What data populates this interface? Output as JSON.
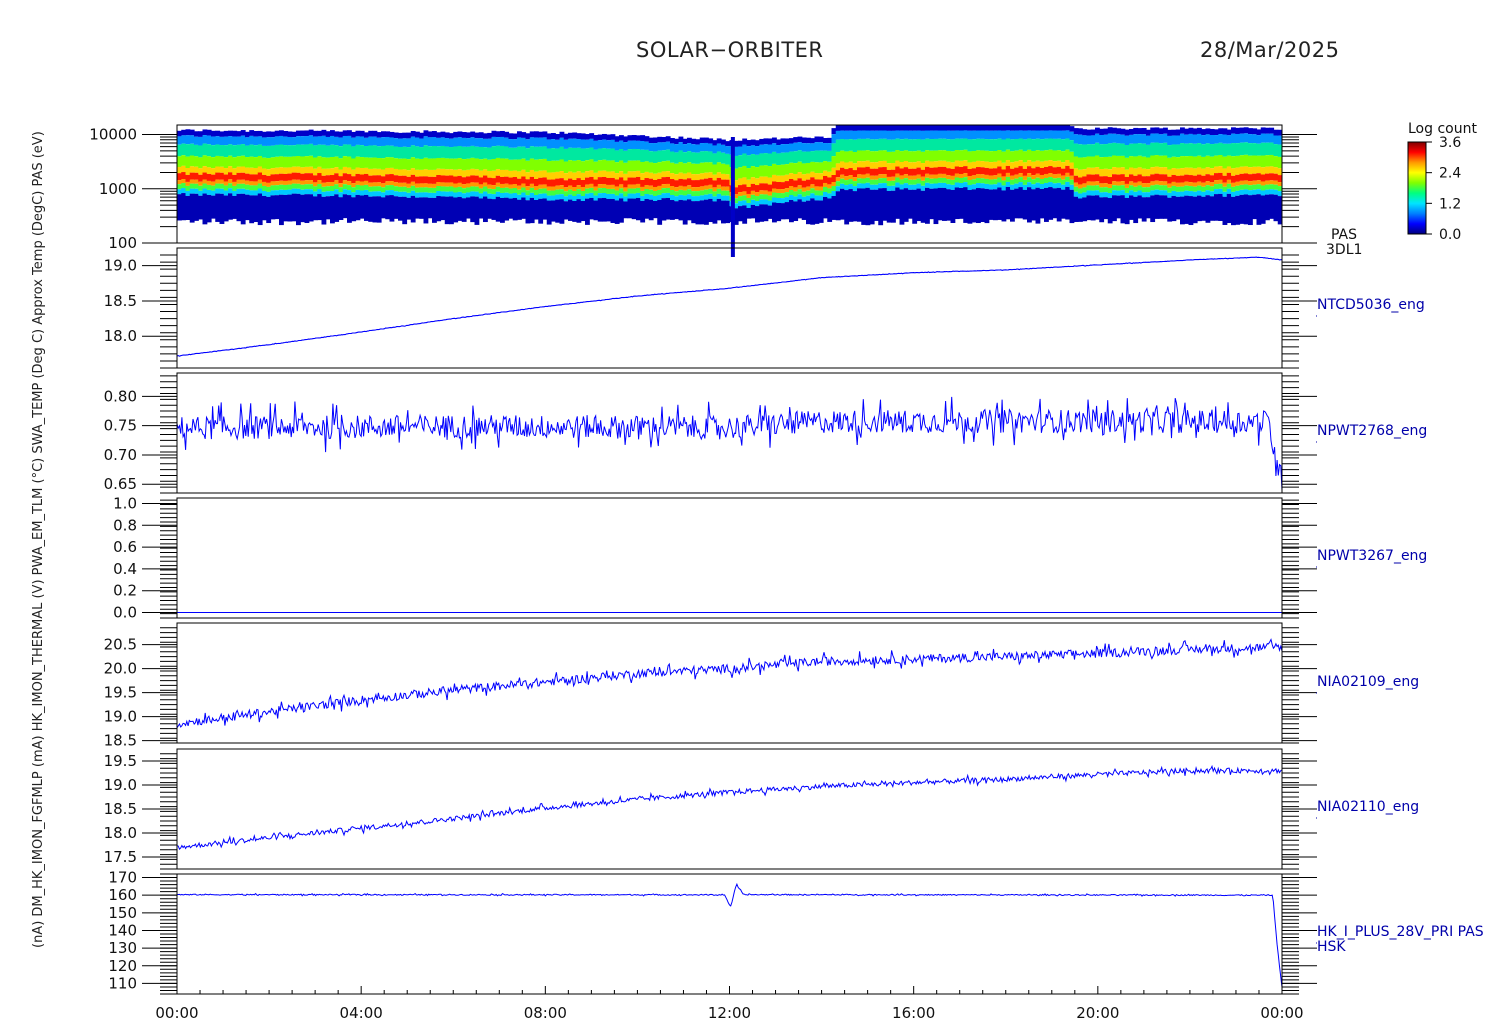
{
  "header": {
    "mission": "SOLAR−ORBITER",
    "date": "28/Mar/2025"
  },
  "colors": {
    "trace": "#0000ff",
    "axis": "#000000",
    "label_right": "#0000aa"
  },
  "time_axis": {
    "ticks": [
      "00:00",
      "04:00",
      "08:00",
      "12:00",
      "16:00",
      "20:00",
      "00:00"
    ],
    "range_hours": [
      0,
      24
    ]
  },
  "y_axis_title_overlap": "(nA) DM_HK_IMON_FGFMLP (mA) HK_IMON_THERMAL (V) PWA_EM_TLM (°C) SWA_TEMP (Deg C) Approx Temp (DegC) PAS (eV)",
  "colorbar": {
    "title": "Log count",
    "ticks": [
      "3.6",
      "2.4",
      "1.2",
      "0.0"
    ],
    "range": [
      0.0,
      3.6
    ],
    "colors": [
      "#00007f",
      "#0000ff",
      "#0080ff",
      "#00e5ff",
      "#00ff80",
      "#80ff00",
      "#ffff00",
      "#ff9900",
      "#ff0000",
      "#7f0000"
    ]
  },
  "chart_data": [
    {
      "type": "heatmap",
      "panel_id": "PAS 3DL1",
      "right_labels": [
        "PAS",
        "3DL1"
      ],
      "yscale": "log",
      "ylim": [
        100,
        15000
      ],
      "ytick_labels": [
        "10000",
        "1000",
        "100"
      ],
      "ytick_values": [
        10000,
        1000,
        100
      ],
      "x_hours": [
        0,
        24
      ],
      "peak_energy_profile": [
        {
          "x": 0,
          "y": 1600
        },
        {
          "x": 4,
          "y": 1550
        },
        {
          "x": 8,
          "y": 1300
        },
        {
          "x": 11.9,
          "y": 1300
        },
        {
          "x": 12.1,
          "y": 900
        },
        {
          "x": 14.2,
          "y": 1400
        },
        {
          "x": 14.4,
          "y": 2000
        },
        {
          "x": 19.4,
          "y": 2100
        },
        {
          "x": 19.5,
          "y": 1450
        },
        {
          "x": 24,
          "y": 1600
        }
      ],
      "upper_cutoff_profile": [
        {
          "x": 0,
          "y": 12000
        },
        {
          "x": 8,
          "y": 11000
        },
        {
          "x": 12,
          "y": 8000
        },
        {
          "x": 14.2,
          "y": 9000
        },
        {
          "x": 14.3,
          "y": 16000
        },
        {
          "x": 19.4,
          "y": 16000
        },
        {
          "x": 19.5,
          "y": 13000
        },
        {
          "x": 24,
          "y": 13000
        }
      ],
      "lower_cutoff": 250
    },
    {
      "type": "line",
      "panel_id": "NTCD5036_eng",
      "right_label": "NTCD5036_eng",
      "ylim": [
        17.55,
        19.25
      ],
      "ytick_labels": [
        "19.0",
        "18.5",
        "18.0"
      ],
      "ytick_values": [
        19.0,
        18.5,
        18.0
      ],
      "points": [
        {
          "x": 0,
          "y": 17.72
        },
        {
          "x": 2,
          "y": 17.88
        },
        {
          "x": 4,
          "y": 18.06
        },
        {
          "x": 6,
          "y": 18.25
        },
        {
          "x": 8,
          "y": 18.42
        },
        {
          "x": 10,
          "y": 18.57
        },
        {
          "x": 12,
          "y": 18.68
        },
        {
          "x": 14,
          "y": 18.83
        },
        {
          "x": 16,
          "y": 18.9
        },
        {
          "x": 18,
          "y": 18.94
        },
        {
          "x": 20,
          "y": 19.01
        },
        {
          "x": 22,
          "y": 19.08
        },
        {
          "x": 23.5,
          "y": 19.12
        },
        {
          "x": 24,
          "y": 19.08
        }
      ],
      "noise": 0.003
    },
    {
      "type": "line",
      "panel_id": "NPWT2768_eng",
      "right_label": "NPWT2768_eng",
      "ylim": [
        0.635,
        0.84
      ],
      "ytick_labels": [
        "0.80",
        "0.75",
        "0.70",
        "0.65"
      ],
      "ytick_values": [
        0.8,
        0.75,
        0.7,
        0.65
      ],
      "points": [
        {
          "x": 0,
          "y": 0.746
        },
        {
          "x": 6,
          "y": 0.749
        },
        {
          "x": 12,
          "y": 0.747
        },
        {
          "x": 14,
          "y": 0.757
        },
        {
          "x": 20,
          "y": 0.758
        },
        {
          "x": 23.7,
          "y": 0.757
        },
        {
          "x": 23.85,
          "y": 0.7
        },
        {
          "x": 24,
          "y": 0.655
        }
      ],
      "noise": 0.02
    },
    {
      "type": "line",
      "panel_id": "NPWT3267_eng",
      "right_label": "NPWT3267_eng",
      "ylim": [
        -0.05,
        1.05
      ],
      "ytick_labels": [
        "1.0",
        "0.8",
        "0.6",
        "0.4",
        "0.2",
        "0.0"
      ],
      "ytick_values": [
        1.0,
        0.8,
        0.6,
        0.4,
        0.2,
        0.0
      ],
      "points": [
        {
          "x": 0,
          "y": 0.0
        },
        {
          "x": 24,
          "y": 0.0
        }
      ],
      "noise": 0.0
    },
    {
      "type": "line",
      "panel_id": "NIA02109_eng",
      "right_label": "NIA02109_eng",
      "ylim": [
        18.45,
        20.95
      ],
      "ytick_labels": [
        "20.5",
        "20.0",
        "19.5",
        "19.0",
        "18.5"
      ],
      "ytick_values": [
        20.5,
        20.0,
        19.5,
        19.0,
        18.5
      ],
      "points": [
        {
          "x": 0,
          "y": 18.85
        },
        {
          "x": 2,
          "y": 19.1
        },
        {
          "x": 4,
          "y": 19.35
        },
        {
          "x": 6,
          "y": 19.55
        },
        {
          "x": 8,
          "y": 19.72
        },
        {
          "x": 10,
          "y": 19.9
        },
        {
          "x": 12,
          "y": 20.0
        },
        {
          "x": 14,
          "y": 20.15
        },
        {
          "x": 16,
          "y": 20.2
        },
        {
          "x": 18,
          "y": 20.25
        },
        {
          "x": 20,
          "y": 20.32
        },
        {
          "x": 22,
          "y": 20.4
        },
        {
          "x": 24,
          "y": 20.45
        }
      ],
      "noise": 0.09
    },
    {
      "type": "line",
      "panel_id": "NIA02110_eng",
      "right_label": "NIA02110_eng",
      "ylim": [
        17.25,
        19.75
      ],
      "ytick_labels": [
        "19.5",
        "19.0",
        "18.5",
        "18.0",
        "17.5"
      ],
      "ytick_values": [
        19.5,
        19.0,
        18.5,
        18.0,
        17.5
      ],
      "points": [
        {
          "x": 0,
          "y": 17.7
        },
        {
          "x": 2,
          "y": 17.9
        },
        {
          "x": 4,
          "y": 18.1
        },
        {
          "x": 6,
          "y": 18.3
        },
        {
          "x": 8,
          "y": 18.52
        },
        {
          "x": 10,
          "y": 18.7
        },
        {
          "x": 12,
          "y": 18.85
        },
        {
          "x": 14,
          "y": 18.97
        },
        {
          "x": 16,
          "y": 19.05
        },
        {
          "x": 18,
          "y": 19.12
        },
        {
          "x": 20,
          "y": 19.22
        },
        {
          "x": 22,
          "y": 19.3
        },
        {
          "x": 24,
          "y": 19.3
        }
      ],
      "noise": 0.05
    },
    {
      "type": "line",
      "panel_id": "HK_I_PLUS_28V_PRI PAS HSK",
      "right_label": "HK_I_PLUS_28V_PRI PAS",
      "right_label2": "HSK",
      "ylim": [
        104,
        172
      ],
      "ytick_labels": [
        "170",
        "160",
        "150",
        "140",
        "130",
        "120",
        "110"
      ],
      "ytick_values": [
        170,
        160,
        150,
        140,
        130,
        120,
        110
      ],
      "points": [
        {
          "x": 0,
          "y": 160.3
        },
        {
          "x": 11.9,
          "y": 160.2
        },
        {
          "x": 12.02,
          "y": 153.0
        },
        {
          "x": 12.15,
          "y": 166.0
        },
        {
          "x": 12.3,
          "y": 160.3
        },
        {
          "x": 23.8,
          "y": 160.0
        },
        {
          "x": 23.9,
          "y": 130.0
        },
        {
          "x": 24,
          "y": 108.0
        }
      ],
      "noise": 0.3
    }
  ]
}
